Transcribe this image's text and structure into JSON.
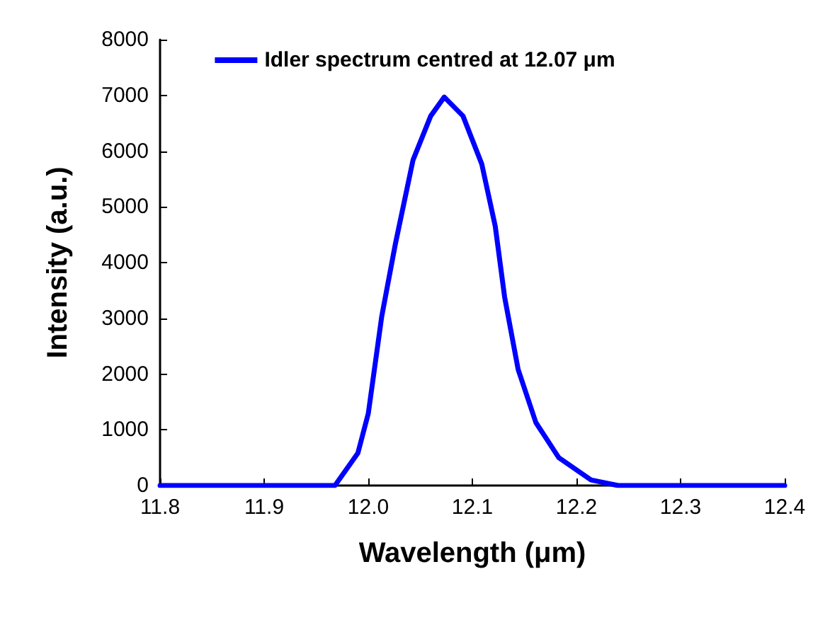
{
  "chart_data": {
    "type": "line",
    "xlabel": "Wavelength (μm)",
    "ylabel": "Intensity (a.u.)",
    "xlim": [
      11.8,
      12.4
    ],
    "xticks": [
      11.8,
      11.9,
      {
        "value": 12,
        "label": "12.0"
      },
      12.1,
      12.2,
      12.3,
      12.4
    ],
    "ylim": [
      0,
      8000
    ],
    "yticks": [
      0,
      1000,
      2000,
      3000,
      4000,
      5000,
      6000,
      7000,
      8000
    ],
    "x": [
      11.8,
      11.9,
      11.968,
      11.99,
      12.0,
      12.013,
      12.026,
      12.043,
      12.06,
      12.073,
      12.091,
      12.109,
      12.122,
      12.131,
      12.144,
      12.161,
      12.183,
      12.214,
      12.24,
      12.3,
      12.4
    ],
    "series": [
      {
        "name": "Idler spectrum centred at 12.07 μm",
        "color": "#0000ff",
        "values": [
          0,
          0,
          0,
          580,
          1290,
          3040,
          4330,
          5840,
          6630,
          6970,
          6630,
          5770,
          4650,
          3380,
          2080,
          1130,
          500,
          100,
          0,
          0,
          0
        ]
      }
    ],
    "legend": "top",
    "grid": false,
    "marker": "none",
    "line_style": "solid"
  }
}
